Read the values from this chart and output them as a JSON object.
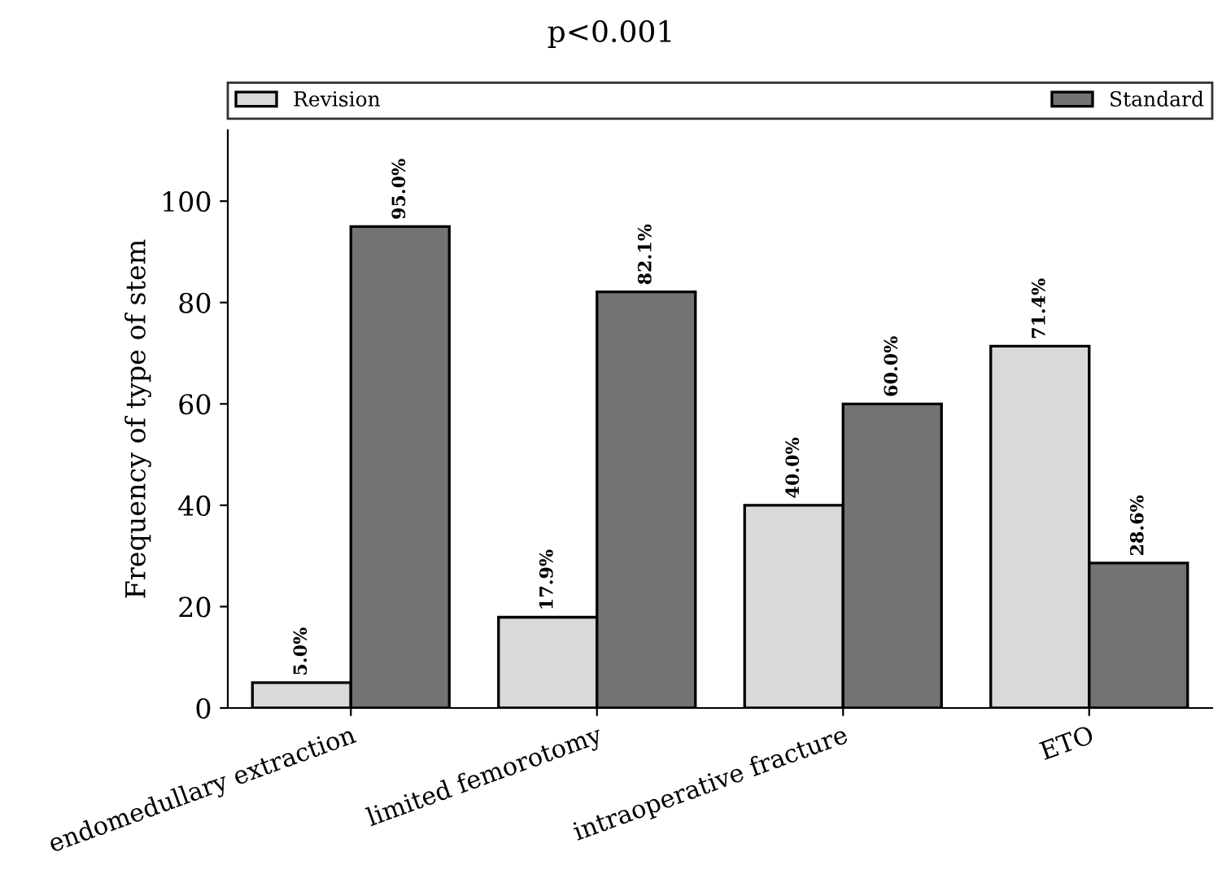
{
  "chart_data": {
    "type": "bar",
    "title": "p<0.001",
    "ylabel": "Frequency of type of stem",
    "categories": [
      "endomedullary extraction",
      "limited femorotomy",
      "intraoperative fracture",
      "ETO"
    ],
    "series": [
      {
        "name": "Revision",
        "color": "#d9d9d9",
        "values": [
          5.0,
          17.9,
          40.0,
          71.4
        ],
        "value_labels": [
          "5.0%",
          "17.9%",
          "40.0%",
          "71.4%"
        ]
      },
      {
        "name": "Standard",
        "color": "#737373",
        "values": [
          95.0,
          82.1,
          60.0,
          28.6
        ],
        "value_labels": [
          "95.0%",
          "82.1%",
          "60.0%",
          "28.6%"
        ]
      }
    ],
    "ylim": [
      0,
      114
    ],
    "yticks": [
      0,
      20,
      40,
      60,
      80,
      100
    ],
    "grid": false,
    "legend": "top"
  }
}
